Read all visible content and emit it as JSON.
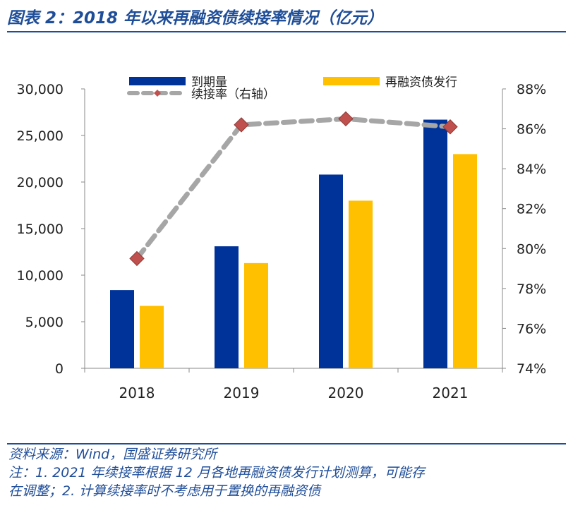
{
  "header": {
    "title": "图表 2：2018 年以来再融资债续接率情况（亿元）"
  },
  "footer": {
    "source": "资料来源：Wind，国盛证券研究所",
    "note_line1": "注：1. 2021 年续接率根据 12 月各地再融资债发行计划测算，可能存",
    "note_line2": "在调整；2. 计算续接率时不考虑用于置换的再融资债"
  },
  "colors": {
    "title": "#1f4e99",
    "maturity_bar": "#003399",
    "issuance_bar": "#ffc000",
    "rate_line": "#a6a6a6",
    "rate_marker": "#c0504d"
  },
  "chart_data": {
    "type": "bar",
    "categories": [
      "2018",
      "2019",
      "2020",
      "2021"
    ],
    "series": [
      {
        "name": "到期量",
        "kind": "bar",
        "axis": "left",
        "values": [
          8400,
          13100,
          20800,
          26700
        ]
      },
      {
        "name": "再融资债发行",
        "kind": "bar",
        "axis": "left",
        "values": [
          6700,
          11300,
          18000,
          23000
        ]
      },
      {
        "name": "续接率（右轴）",
        "kind": "line",
        "axis": "right",
        "values": [
          79.5,
          86.2,
          86.5,
          86.1
        ]
      }
    ],
    "left_axis": {
      "ylim": [
        0,
        30000
      ],
      "ticks": [
        0,
        5000,
        10000,
        15000,
        20000,
        25000,
        30000
      ],
      "tick_labels": [
        "0",
        "5,000",
        "10,000",
        "15,000",
        "20,000",
        "25,000",
        "30,000"
      ]
    },
    "right_axis": {
      "ylim": [
        74,
        88
      ],
      "ticks": [
        74,
        76,
        78,
        80,
        82,
        84,
        86,
        88
      ],
      "tick_labels": [
        "74%",
        "76%",
        "78%",
        "80%",
        "82%",
        "84%",
        "86%",
        "88%"
      ]
    },
    "grid": false,
    "legend_position": "top"
  }
}
